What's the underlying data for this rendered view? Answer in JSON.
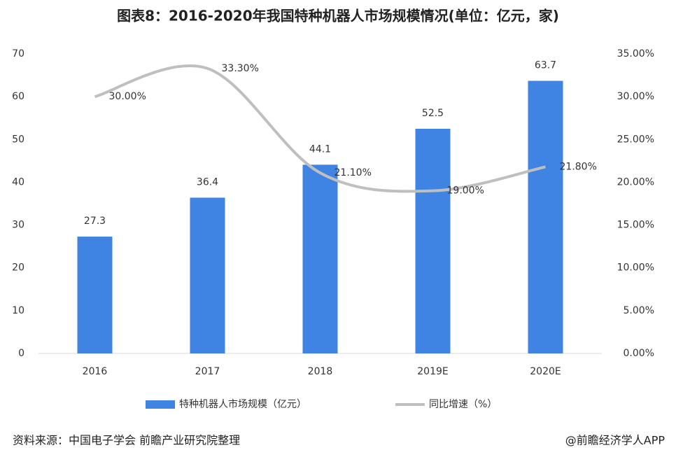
{
  "chart_data": {
    "type": "bar",
    "title": "图表8：2016-2020年我国特种机器人市场规模情况(单位：亿元，家)",
    "categories": [
      "2016",
      "2017",
      "2018",
      "2019E",
      "2020E"
    ],
    "series": [
      {
        "name": "特种机器人市场规模（亿元）",
        "color": "#3f83e3",
        "values": [
          27.3,
          36.4,
          44.1,
          52.5,
          63.7
        ]
      },
      {
        "name": "同比增速（%）",
        "color": "#bfbfbf",
        "type": "line",
        "axis": "y2",
        "values": [
          30,
          33.3,
          21.1,
          19,
          21.8
        ],
        "value_labels": [
          "30.00%",
          "33.30%",
          "21.10%",
          "19.00%",
          "21.80%"
        ]
      }
    ],
    "ylim": [
      0,
      70
    ],
    "yticks": [
      0,
      10,
      20,
      30,
      40,
      50,
      60,
      70
    ],
    "y2lim": [
      0,
      35
    ],
    "y2ticks": [
      {
        "value": 0,
        "label": "0.00%"
      },
      {
        "value": 5,
        "label": "5.00%"
      },
      {
        "value": 10,
        "label": "10.00%"
      },
      {
        "value": 15,
        "label": "15.00%"
      },
      {
        "value": 20,
        "label": "20.00%"
      },
      {
        "value": 25,
        "label": "25.00%"
      },
      {
        "value": 30,
        "label": "30.00%"
      },
      {
        "value": 35,
        "label": "35.00%"
      }
    ],
    "grid": false,
    "legend": "bottom",
    "source": "资料来源：中国电子学会 前瞻产业研究院整理",
    "credit": "@前瞻经济学人APP"
  }
}
